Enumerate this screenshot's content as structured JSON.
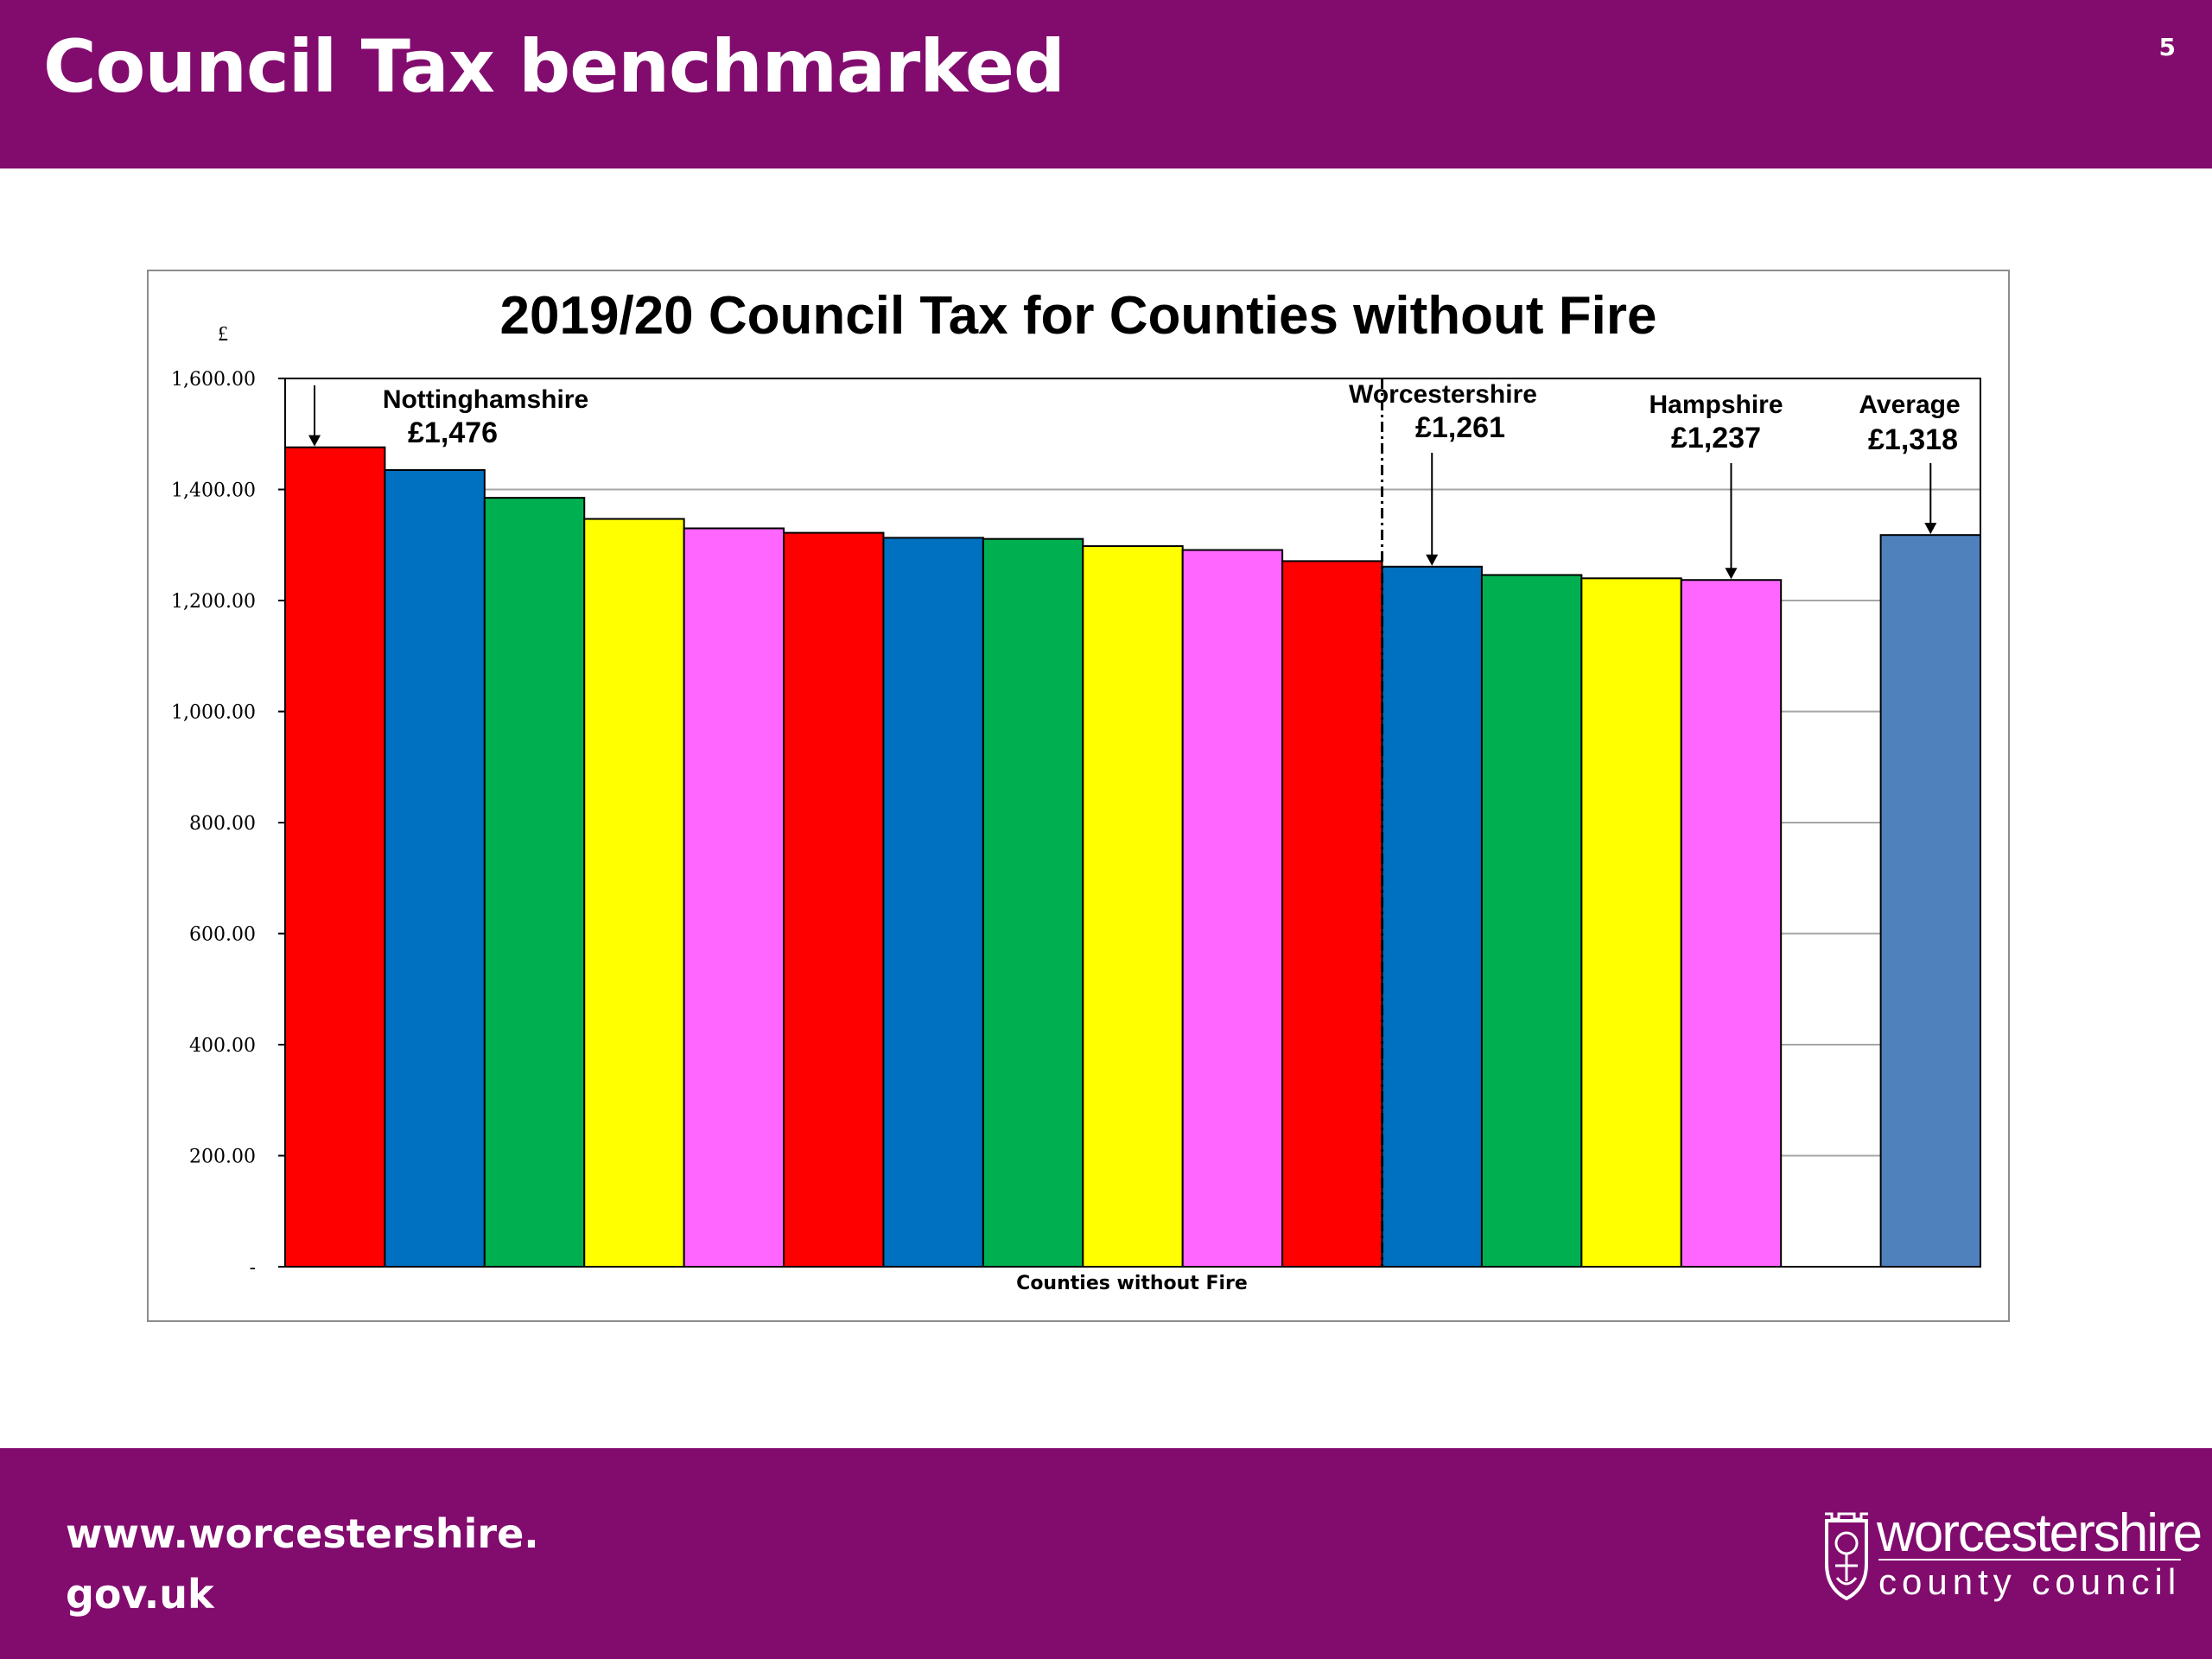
{
  "slide": {
    "title": "Council Tax benchmarked",
    "page_number": "5"
  },
  "footer": {
    "url_line1": "www.worcestershire.",
    "url_line2": "gov.uk",
    "logo_name": "worcestershire",
    "logo_sub": "county council"
  },
  "colors": {
    "brand_purple": "#820c6e",
    "red": "#ff0000",
    "blue": "#0070c0",
    "green": "#00b050",
    "yellow": "#ffff00",
    "pink": "#ff66ff",
    "average_blue": "#4f81bd"
  },
  "chart_data": {
    "type": "bar",
    "title": "2019/20 Council Tax for Counties without Fire",
    "xlabel": "Counties without Fire",
    "ylabel": "£",
    "ylim": [
      0,
      1600
    ],
    "yticks": [
      0,
      200,
      400,
      600,
      800,
      1000,
      1200,
      1400,
      1600
    ],
    "ytick_labels": [
      "-",
      "200.00",
      "400.00",
      "600.00",
      "800.00",
      "1,000.00",
      "1,200.00",
      "1,400.00",
      "1,600.00"
    ],
    "grid": "horizontal",
    "values": [
      1476,
      1435,
      1385,
      1347,
      1330,
      1322,
      1313,
      1311,
      1298,
      1291,
      1271,
      1261,
      1246,
      1240,
      1237,
      null,
      1318
    ],
    "colors": [
      "#ff0000",
      "#0070c0",
      "#00b050",
      "#ffff00",
      "#ff66ff",
      "#ff0000",
      "#0070c0",
      "#00b050",
      "#ffff00",
      "#ff66ff",
      "#ff0000",
      "#0070c0",
      "#00b050",
      "#ffff00",
      "#ff66ff",
      null,
      "#4f81bd"
    ],
    "divider_after_index": 10,
    "annotations": [
      {
        "name": "Nottinghamshire",
        "value_label": "£1,476",
        "index": 0
      },
      {
        "name": "Worcestershire",
        "value_label": "£1,261",
        "index": 11
      },
      {
        "name": "Hampshire",
        "value_label": "£1,237",
        "index": 14
      },
      {
        "name": "Average",
        "value_label": "£1,318",
        "index": 16
      }
    ]
  }
}
